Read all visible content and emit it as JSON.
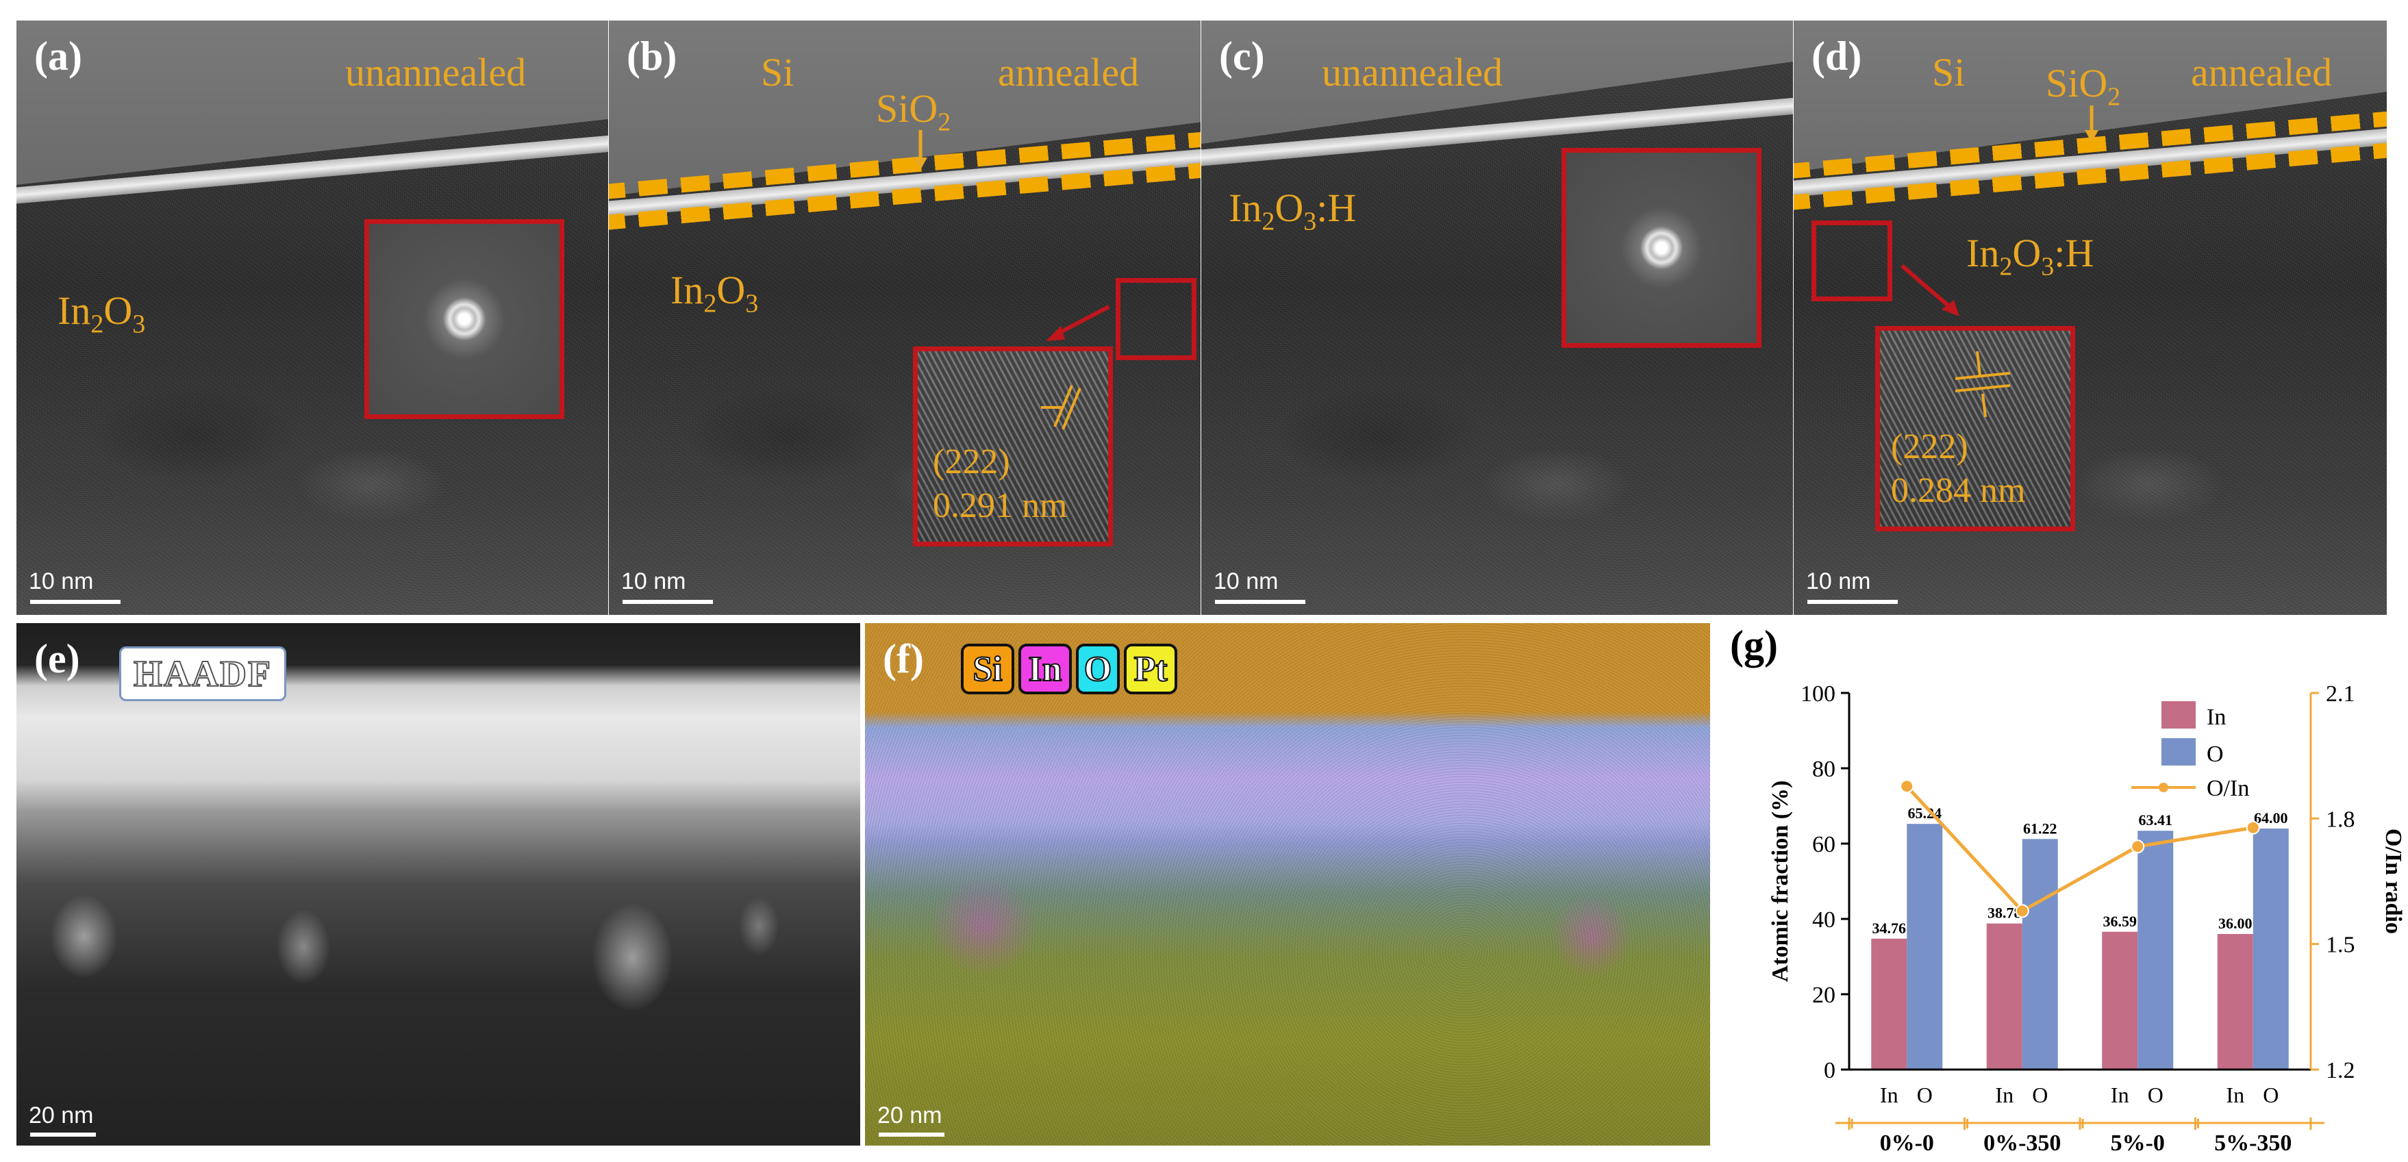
{
  "panels": {
    "a": {
      "letter": "(a)",
      "state": "unannealed",
      "material_main": "In",
      "material_sub1": "2",
      "material_mid": "O",
      "material_sub2": "3",
      "scale": "10 nm"
    },
    "b": {
      "letter": "(b)",
      "si": "Si",
      "sio2_main": "SiO",
      "sio2_sub": "2",
      "state": "annealed",
      "material_main": "In",
      "material_sub1": "2",
      "material_mid": "O",
      "material_sub2": "3",
      "plane": "(222)",
      "spacing": "0.291 nm",
      "scale": "10 nm"
    },
    "c": {
      "letter": "(c)",
      "state": "unannealed",
      "material_main": "In",
      "material_sub1": "2",
      "material_mid": "O",
      "material_sub2": "3",
      "material_suffix": ":H",
      "scale": "10 nm"
    },
    "d": {
      "letter": "(d)",
      "si": "Si",
      "sio2_main": "SiO",
      "sio2_sub": "2",
      "state": "annealed",
      "material_main": "In",
      "material_sub1": "2",
      "material_mid": "O",
      "material_sub2": "3",
      "material_suffix": ":H",
      "plane": "(222)",
      "spacing": "0.284 nm",
      "scale": "10 nm"
    },
    "e": {
      "letter": "(e)",
      "mode": "HAADF",
      "scale": "20 nm"
    },
    "f": {
      "letter": "(f)",
      "elements": [
        {
          "symbol": "Si",
          "color": "#f39c12"
        },
        {
          "symbol": "In",
          "color": "#ee3fe6"
        },
        {
          "symbol": "O",
          "color": "#27e1ef"
        },
        {
          "symbol": "Pt",
          "color": "#f1ef2a"
        }
      ],
      "scale": "20 nm"
    }
  },
  "chart_data": {
    "panel_letter": "(g)",
    "type": "bar",
    "categories": [
      "0%-0",
      "0%-350",
      "5%-0",
      "5%-350"
    ],
    "sub_labels": [
      "In",
      "O"
    ],
    "series": [
      {
        "name": "In",
        "color": "#c46d86",
        "values": [
          34.76,
          38.78,
          36.59,
          36.0
        ],
        "labels": [
          "34.76",
          "38.78",
          "36.59",
          "36.00"
        ]
      },
      {
        "name": "O",
        "color": "#7891c8",
        "values": [
          65.24,
          61.22,
          63.41,
          64.0
        ],
        "labels": [
          "65.24",
          "61.22",
          "63.41",
          "64.00"
        ]
      }
    ],
    "line_series": {
      "name": "O/In",
      "color": "#f2a93b",
      "values": [
        1.877,
        1.579,
        1.733,
        1.778
      ]
    },
    "ylabel_left": "Atomic fraction (%)",
    "ylabel_right": "O/In radio",
    "ylim_left": [
      0,
      100
    ],
    "yticks_left": [
      "0",
      "20",
      "40",
      "60",
      "80",
      "100"
    ],
    "ylim_right": [
      1.2,
      2.1
    ],
    "yticks_right": [
      "1.2",
      "1.5",
      "1.8",
      "2.1"
    ],
    "legend_position": "top-right",
    "colors": {
      "axis_right": "#f2a93b"
    }
  }
}
